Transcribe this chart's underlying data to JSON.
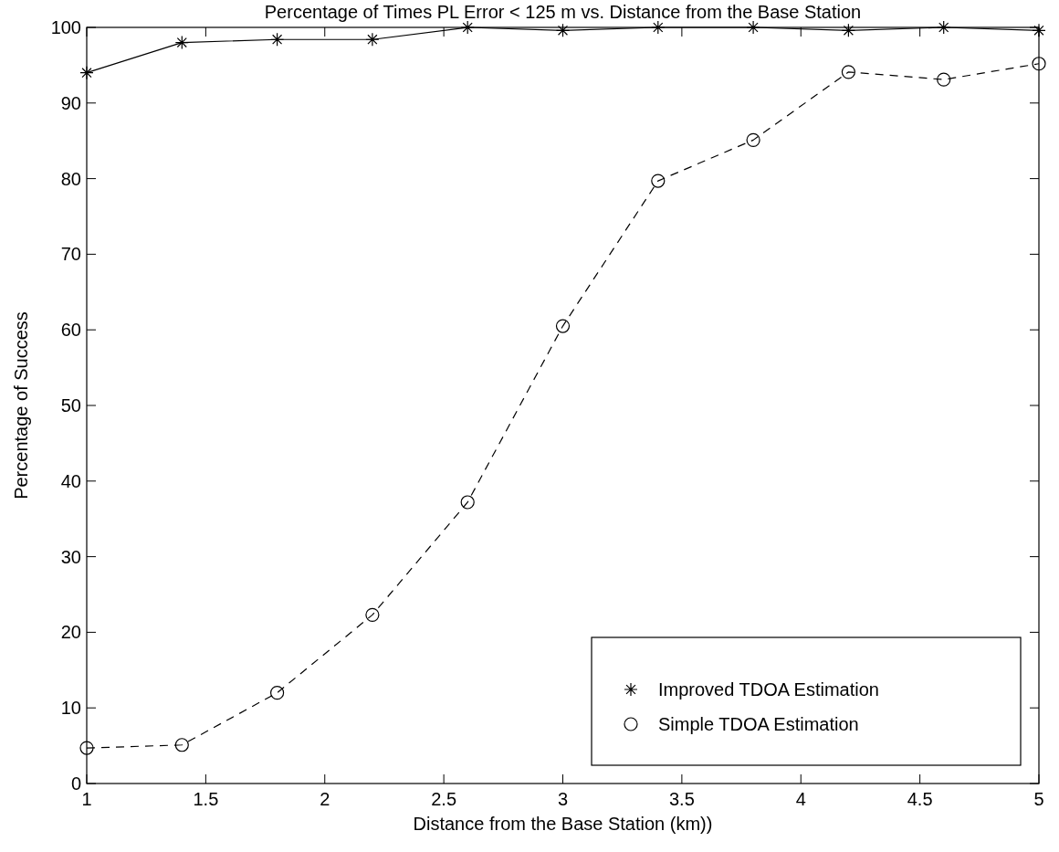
{
  "chart_data": {
    "type": "line",
    "title": "Percentage of Times PL Error < 125 m vs. Distance from the Base Station",
    "xlabel": "Distance from the Base Station (km))",
    "ylabel": "Percentage of Success",
    "x": [
      1,
      1.4,
      1.8,
      2.2,
      2.6,
      3,
      3.4,
      3.8,
      4.2,
      4.6,
      5
    ],
    "series": [
      {
        "name": "Improved TDOA Estimation",
        "color": "#000000",
        "marker": "cross",
        "line_style": "solid",
        "values": [
          94,
          98,
          98.4,
          98.4,
          100,
          99.6,
          100,
          100,
          99.6,
          100,
          99.6
        ]
      },
      {
        "name": "Simple TDOA Estimation",
        "color": "#000000",
        "marker": "circle",
        "line_style": "dashed",
        "values": [
          4.7,
          5.1,
          12,
          22.3,
          37.2,
          60.5,
          79.7,
          85.1,
          94.1,
          93.1,
          95.2
        ]
      }
    ],
    "xlim": [
      1,
      5
    ],
    "xticks": [
      1,
      1.5,
      2,
      2.5,
      3,
      3.5,
      4,
      4.5,
      5
    ],
    "ylim": [
      0,
      100
    ],
    "yticks": [
      0,
      10,
      20,
      30,
      40,
      50,
      60,
      70,
      80,
      90,
      100
    ],
    "grid": false,
    "legend": "bottom right"
  }
}
